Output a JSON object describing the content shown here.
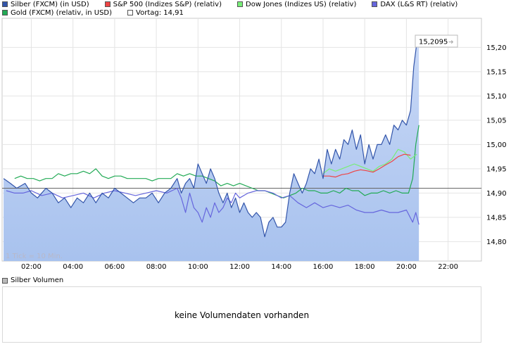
{
  "legend": [
    {
      "label": "Silber (FXCM) (in USD)",
      "color": "#3355aa"
    },
    {
      "label": "S&P 500 (Indizes S&P) (relativ)",
      "color": "#ee4444"
    },
    {
      "label": "Dow Jones (Indizes US) (relativ)",
      "color": "#77ee77"
    },
    {
      "label": "DAX (L&S RT) (relativ)",
      "color": "#6666dd"
    },
    {
      "label": "Gold (FXCM) (relativ, in USD)",
      "color": "#22aa55"
    },
    {
      "label": "Vortag: 14,91",
      "color": "#ffffff"
    }
  ],
  "tick_note": "1 Tick = 10 Min.",
  "last_value_label": "15,2095",
  "volume": {
    "legend_label": "Silber Volumen",
    "legend_color": "#bbbbbb",
    "message": "keine Volumendaten vorhanden"
  },
  "chart_data": {
    "type": "line",
    "title": "",
    "x_unit": "hour",
    "xlim": [
      0.6,
      23.6
    ],
    "ylim": [
      14.76,
      15.26
    ],
    "x_ticks": [
      2,
      4,
      6,
      8,
      10,
      12,
      14,
      16,
      18,
      20,
      22
    ],
    "x_tick_labels": [
      "02:00",
      "04:00",
      "06:00",
      "08:00",
      "10:00",
      "12:00",
      "14:00",
      "16:00",
      "18:00",
      "20:00",
      "22:00"
    ],
    "y_ticks": [
      14.8,
      14.85,
      14.9,
      14.95,
      15.0,
      15.05,
      15.1,
      15.15,
      15.2
    ],
    "y_tick_labels": [
      "14,80",
      "14,85",
      "14,90",
      "14,95",
      "15,00",
      "15,05",
      "15,10",
      "15,15",
      "15,20"
    ],
    "reference_line": {
      "label": "Vortag",
      "value": 14.91
    },
    "grid": true,
    "legend_position": "top",
    "series": [
      {
        "name": "Silber (FXCM) (in USD)",
        "color": "#3355aa",
        "fill": true,
        "x": [
          0.67,
          1.0,
          1.3,
          1.7,
          2.0,
          2.3,
          2.7,
          3.0,
          3.3,
          3.6,
          3.9,
          4.2,
          4.5,
          4.8,
          5.1,
          5.4,
          5.7,
          6.0,
          6.3,
          6.6,
          6.9,
          7.2,
          7.5,
          7.8,
          8.1,
          8.4,
          8.7,
          9.0,
          9.2,
          9.4,
          9.6,
          9.8,
          10.0,
          10.2,
          10.4,
          10.6,
          10.8,
          11.0,
          11.2,
          11.4,
          11.6,
          11.8,
          12.0,
          12.2,
          12.4,
          12.6,
          12.8,
          13.0,
          13.2,
          13.4,
          13.6,
          13.8,
          14.0,
          14.2,
          14.4,
          14.6,
          14.8,
          15.0,
          15.2,
          15.4,
          15.6,
          15.8,
          16.0,
          16.2,
          16.4,
          16.6,
          16.8,
          17.0,
          17.2,
          17.4,
          17.6,
          17.8,
          18.0,
          18.2,
          18.4,
          18.6,
          18.8,
          19.0,
          19.2,
          19.4,
          19.6,
          19.8,
          20.0,
          20.2,
          20.35,
          20.5,
          20.6
        ],
        "y": [
          14.93,
          14.92,
          14.91,
          14.92,
          14.9,
          14.89,
          14.91,
          14.9,
          14.88,
          14.89,
          14.87,
          14.89,
          14.88,
          14.9,
          14.88,
          14.9,
          14.89,
          14.91,
          14.9,
          14.89,
          14.88,
          14.89,
          14.89,
          14.9,
          14.88,
          14.9,
          14.91,
          14.93,
          14.9,
          14.92,
          14.93,
          14.91,
          14.96,
          14.94,
          14.92,
          14.95,
          14.93,
          14.9,
          14.88,
          14.9,
          14.87,
          14.89,
          14.86,
          14.88,
          14.86,
          14.85,
          14.86,
          14.85,
          14.81,
          14.84,
          14.85,
          14.83,
          14.83,
          14.84,
          14.9,
          14.94,
          14.92,
          14.9,
          14.92,
          14.95,
          14.94,
          14.97,
          14.93,
          14.99,
          14.96,
          14.99,
          14.97,
          15.01,
          15.0,
          15.03,
          14.99,
          15.02,
          14.96,
          15.0,
          14.97,
          15.0,
          15.0,
          15.02,
          15.0,
          15.04,
          15.03,
          15.05,
          15.04,
          15.07,
          15.16,
          15.21,
          15.21
        ]
      },
      {
        "name": "S&P 500 (Indizes S&P) (relativ)",
        "color": "#ee4444",
        "fill": false,
        "x": [
          16.0,
          16.3,
          16.6,
          16.9,
          17.2,
          17.5,
          17.8,
          18.1,
          18.4,
          18.7,
          19.0,
          19.3,
          19.6,
          19.9,
          20.2
        ],
        "y": [
          14.935,
          14.935,
          14.933,
          14.938,
          14.94,
          14.945,
          14.948,
          14.946,
          14.943,
          14.95,
          14.958,
          14.965,
          14.975,
          14.98,
          14.978
        ]
      },
      {
        "name": "Dow Jones (Indizes US) (relativ)",
        "color": "#77ee77",
        "fill": false,
        "x": [
          16.0,
          16.3,
          16.6,
          16.9,
          17.2,
          17.5,
          17.8,
          18.1,
          18.4,
          18.7,
          19.0,
          19.3,
          19.6,
          19.9,
          20.2,
          20.5
        ],
        "y": [
          14.94,
          14.95,
          14.945,
          14.95,
          14.955,
          14.96,
          14.955,
          14.95,
          14.945,
          14.955,
          14.96,
          14.97,
          14.99,
          14.985,
          14.97,
          14.98
        ]
      },
      {
        "name": "DAX (L&S RT) (relativ)",
        "color": "#6666dd",
        "fill": false,
        "x": [
          0.8,
          1.2,
          1.6,
          2.0,
          2.5,
          3.0,
          3.5,
          4.0,
          4.5,
          5.0,
          5.5,
          6.0,
          6.5,
          7.0,
          7.5,
          8.0,
          8.5,
          9.0,
          9.2,
          9.4,
          9.6,
          9.8,
          10.0,
          10.2,
          10.4,
          10.6,
          10.8,
          11.0,
          11.2,
          11.4,
          11.6,
          11.8,
          12.0,
          12.4,
          12.8,
          13.2,
          13.6,
          14.0,
          14.4,
          14.8,
          15.2,
          15.6,
          16.0,
          16.4,
          16.8,
          17.2,
          17.6,
          18.0,
          18.4,
          18.8,
          19.2,
          19.6,
          20.0,
          20.3,
          20.45,
          20.6
        ],
        "y": [
          14.905,
          14.9,
          14.9,
          14.905,
          14.895,
          14.9,
          14.89,
          14.895,
          14.9,
          14.89,
          14.9,
          14.905,
          14.9,
          14.895,
          14.9,
          14.905,
          14.9,
          14.91,
          14.89,
          14.86,
          14.9,
          14.87,
          14.86,
          14.84,
          14.87,
          14.85,
          14.88,
          14.86,
          14.87,
          14.89,
          14.88,
          14.9,
          14.89,
          14.9,
          14.905,
          14.905,
          14.9,
          14.89,
          14.895,
          14.88,
          14.87,
          14.88,
          14.87,
          14.875,
          14.87,
          14.875,
          14.865,
          14.86,
          14.86,
          14.865,
          14.86,
          14.86,
          14.865,
          14.84,
          14.86,
          14.835
        ]
      },
      {
        "name": "Gold (FXCM) (relativ, in USD)",
        "color": "#22aa55",
        "fill": false,
        "x": [
          1.2,
          1.5,
          1.8,
          2.1,
          2.4,
          2.7,
          3.0,
          3.3,
          3.6,
          3.9,
          4.2,
          4.5,
          4.8,
          5.1,
          5.4,
          5.7,
          6.0,
          6.3,
          6.6,
          6.9,
          7.2,
          7.5,
          7.8,
          8.1,
          8.4,
          8.7,
          9.0,
          9.3,
          9.6,
          9.9,
          10.2,
          10.5,
          10.8,
          11.1,
          11.4,
          11.7,
          12.0,
          12.3,
          12.6,
          12.9,
          13.2,
          13.5,
          13.8,
          14.1,
          14.4,
          14.7,
          15.0,
          15.3,
          15.6,
          15.9,
          16.2,
          16.5,
          16.8,
          17.1,
          17.4,
          17.7,
          18.0,
          18.3,
          18.6,
          18.9,
          19.2,
          19.5,
          19.8,
          20.1,
          20.3,
          20.45,
          20.6
        ],
        "y": [
          14.93,
          14.935,
          14.93,
          14.93,
          14.925,
          14.93,
          14.93,
          14.94,
          14.935,
          14.94,
          14.94,
          14.945,
          14.94,
          14.95,
          14.935,
          14.93,
          14.935,
          14.935,
          14.93,
          14.93,
          14.93,
          14.93,
          14.925,
          14.93,
          14.93,
          14.93,
          14.94,
          14.935,
          14.94,
          14.935,
          14.935,
          14.93,
          14.925,
          14.915,
          14.92,
          14.915,
          14.92,
          14.915,
          14.91,
          14.905,
          14.905,
          14.9,
          14.895,
          14.89,
          14.895,
          14.9,
          14.91,
          14.905,
          14.905,
          14.9,
          14.9,
          14.905,
          14.9,
          14.91,
          14.905,
          14.905,
          14.895,
          14.9,
          14.9,
          14.905,
          14.9,
          14.905,
          14.9,
          14.9,
          14.93,
          15.0,
          15.04
        ]
      }
    ]
  }
}
